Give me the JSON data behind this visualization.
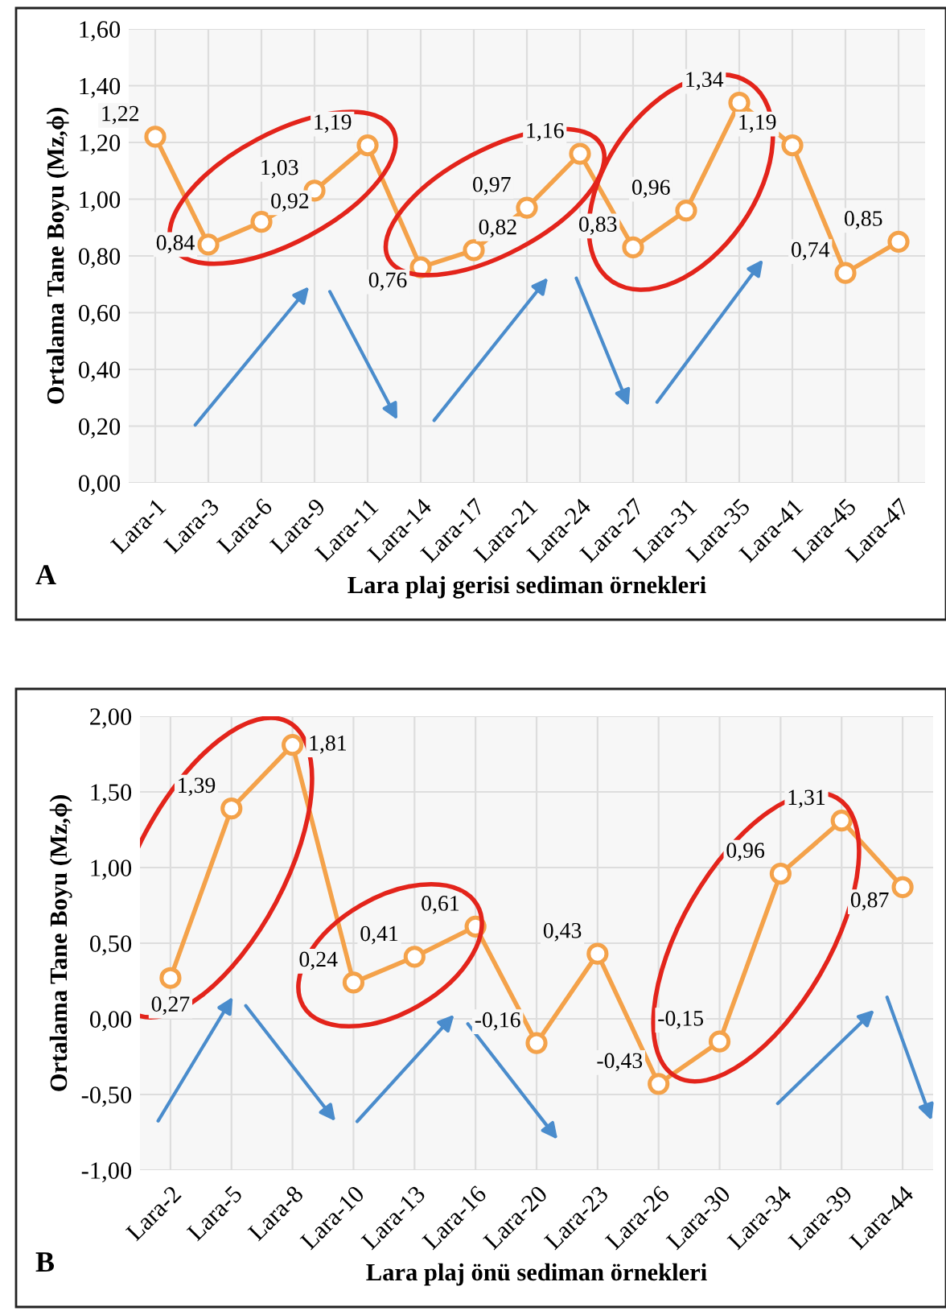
{
  "chart_data": [
    {
      "type": "line",
      "xlabel": "Lara plaj gerisi sediman örnekleri",
      "ylabel": "Ortalama Tane Boyu (Mz,ϕ)",
      "annotations": [
        "A"
      ],
      "categories": [
        "Lara-1",
        "Lara-3",
        "Lara-6",
        "Lara-9",
        "Lara-11",
        "Lara-14",
        "Lara-17",
        "Lara-21",
        "Lara-24",
        "Lara-27",
        "Lara-31",
        "Lara-35",
        "Lara-41",
        "Lara-45",
        "Lara-47"
      ],
      "series": [
        {
          "color": "#f4a24a",
          "values": [
            1.22,
            0.84,
            0.92,
            1.03,
            1.19,
            0.76,
            0.82,
            0.97,
            1.16,
            0.83,
            0.96,
            1.34,
            1.19,
            0.74,
            0.85
          ],
          "value_labels": [
            "1,22",
            "0,84",
            "0,92",
            "1,03",
            "1,19",
            "0,76",
            "0,82",
            "0,97",
            "1,16",
            "0,83",
            "0,96",
            "1,34",
            "1,19",
            "0,74",
            "0,85"
          ]
        }
      ],
      "ylim": [
        0,
        1.6
      ],
      "yticks": [
        {
          "value": 0,
          "label": "0,00"
        },
        {
          "value": 0.2,
          "label": "0,20"
        },
        {
          "value": 0.4,
          "label": "0,40"
        },
        {
          "value": 0.6,
          "label": "0,60"
        },
        {
          "value": 0.8,
          "label": "0,80"
        },
        {
          "value": 1.0,
          "label": "1,00"
        },
        {
          "value": 1.2,
          "label": "1,20"
        },
        {
          "value": 1.4,
          "label": "1,40"
        },
        {
          "value": 1.6,
          "label": "1,60"
        }
      ],
      "grid": true,
      "marker": "circle",
      "line_style": "solid"
    },
    {
      "type": "line",
      "xlabel": "Lara plaj önü sediman örnekleri",
      "ylabel": "Ortalama Tane Boyu (Mz,ϕ)",
      "annotations": [
        "B"
      ],
      "categories": [
        "Lara-2",
        "Lara-5",
        "Lara-8",
        "Lara-10",
        "Lara-13",
        "Lara-16",
        "Lara-20",
        "Lara-23",
        "Lara-26",
        "Lara-30",
        "Lara-34",
        "Lara-39",
        "Lara-44"
      ],
      "series": [
        {
          "color": "#f4a24a",
          "values": [
            0.27,
            1.39,
            1.81,
            0.24,
            0.41,
            0.61,
            -0.16,
            0.43,
            -0.43,
            -0.15,
            0.96,
            1.31,
            0.87
          ],
          "value_labels": [
            "0,27",
            "1,39",
            "1,81",
            "0,24",
            "0,41",
            "0,61",
            "-0,16",
            "0,43",
            "-0,43",
            "-0,15",
            "0,96",
            "1,31",
            "0,87"
          ]
        }
      ],
      "ylim": [
        -1,
        2
      ],
      "yticks": [
        {
          "value": -1,
          "label": "-1,00"
        },
        {
          "value": -0.5,
          "label": "-0,50"
        },
        {
          "value": 0,
          "label": "0,00"
        },
        {
          "value": 0.5,
          "label": "0,50"
        },
        {
          "value": 1.0,
          "label": "1,00"
        },
        {
          "value": 1.5,
          "label": "1,50"
        },
        {
          "value": 2.0,
          "label": "2,00"
        }
      ],
      "grid": true,
      "marker": "circle",
      "line_style": "solid"
    }
  ]
}
